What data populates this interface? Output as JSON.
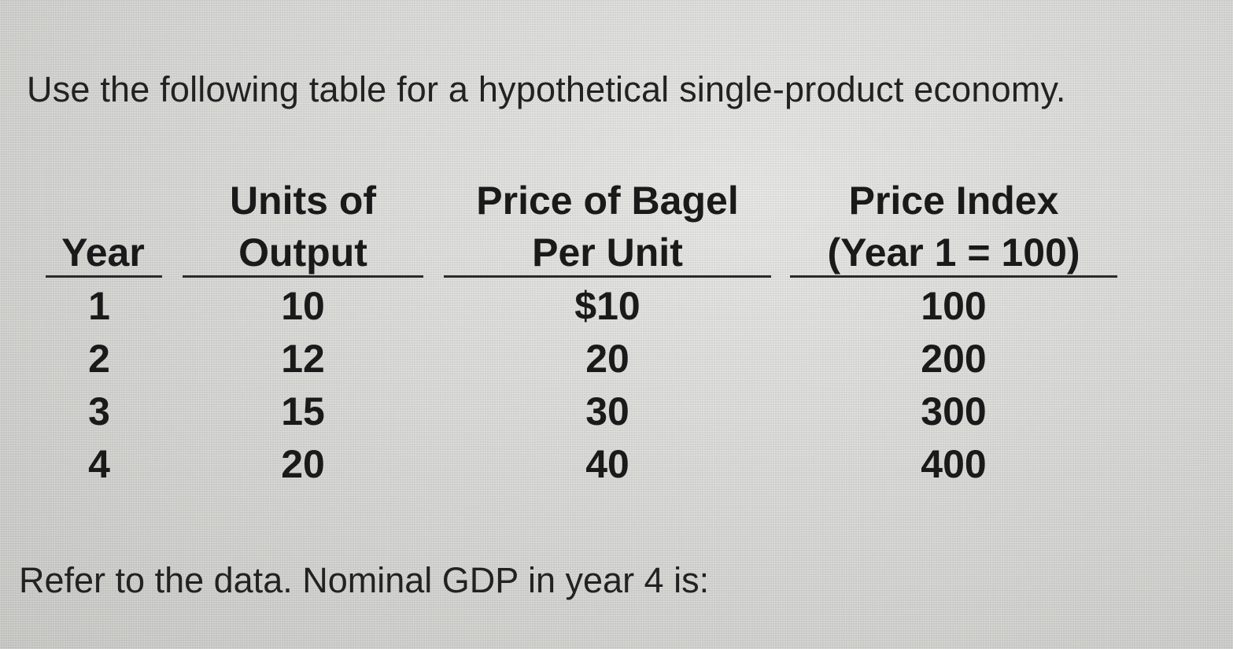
{
  "intro_text": "Use the following table for a hypothetical single-product economy.",
  "table": {
    "columns": [
      {
        "lines": [
          "",
          "Year"
        ]
      },
      {
        "lines": [
          "Units of",
          "Output"
        ]
      },
      {
        "lines": [
          "Price of Bagel",
          "Per Unit"
        ]
      },
      {
        "lines": [
          "Price Index",
          "(Year 1 = 100)"
        ]
      }
    ],
    "rows": [
      [
        "1",
        "10",
        "$10",
        "100"
      ],
      [
        "2",
        "12",
        "20",
        "200"
      ],
      [
        "3",
        "15",
        "30",
        "300"
      ],
      [
        "4",
        "20",
        "40",
        "400"
      ]
    ]
  },
  "question_text": "Refer to the data. Nominal GDP in year 4 is:"
}
